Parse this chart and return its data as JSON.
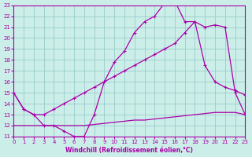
{
  "bg_color": "#cceee8",
  "line_color": "#aa00aa",
  "grid_color": "#99cccc",
  "xlabel": "Windchill (Refroidissement éolien,°C)",
  "xlabel_color": "#aa00aa",
  "xmin": 0,
  "xmax": 23,
  "ymin": 11,
  "ymax": 23,
  "curve_upper_x": [
    0,
    1,
    2,
    3,
    4,
    5,
    6,
    7,
    8,
    9,
    10,
    11,
    12,
    13,
    14,
    15,
    16,
    17,
    18,
    19,
    20,
    21,
    22,
    23
  ],
  "curve_upper_y": [
    15,
    13.5,
    13,
    12,
    12,
    11.5,
    11,
    11,
    13,
    16,
    17.8,
    18.8,
    20.5,
    21.5,
    22,
    23.2,
    23.4,
    21.5,
    21.5,
    21,
    21.2,
    21,
    15,
    13
  ],
  "curve_mid_x": [
    0,
    1,
    2,
    3,
    4,
    5,
    6,
    7,
    8,
    9,
    10,
    11,
    12,
    13,
    14,
    15,
    16,
    17,
    18,
    19,
    20,
    21,
    22,
    23
  ],
  "curve_mid_y": [
    15,
    13.5,
    13,
    13,
    13.5,
    14,
    14.5,
    15,
    15.5,
    16,
    16.5,
    17,
    17.5,
    18,
    18.5,
    19,
    19.5,
    20.5,
    21.5,
    17.5,
    16,
    15.5,
    15.2,
    14.8
  ],
  "curve_low_x": [
    0,
    1,
    2,
    3,
    4,
    5,
    6,
    7,
    8,
    9,
    10,
    11,
    12,
    13,
    14,
    15,
    16,
    17,
    18,
    19,
    20,
    21,
    22,
    23
  ],
  "curve_low_y": [
    12,
    12,
    12,
    12,
    12,
    12,
    12,
    12,
    12.1,
    12.2,
    12.3,
    12.4,
    12.5,
    12.5,
    12.6,
    12.7,
    12.8,
    12.9,
    13.0,
    13.1,
    13.2,
    13.2,
    13.2,
    13.0
  ]
}
